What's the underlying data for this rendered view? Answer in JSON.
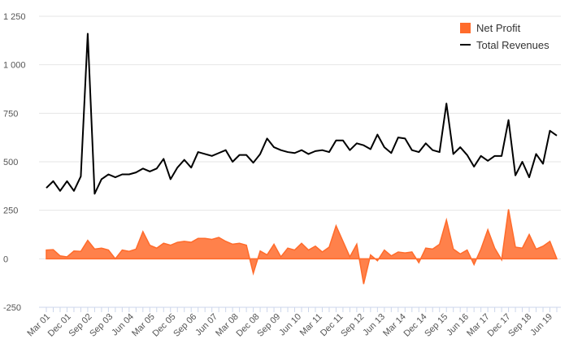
{
  "chart_data": {
    "type": "line",
    "title": "",
    "xlabel": "",
    "ylabel": "",
    "ylim": [
      -250,
      1250
    ],
    "y_ticks": [
      -250,
      0,
      250,
      500,
      750,
      1000,
      1250
    ],
    "y_tick_labels": [
      "-250",
      "0",
      "250",
      "500",
      "750",
      "1 000",
      "1 250"
    ],
    "grid": true,
    "legend_position": "top-right",
    "x_tick_labels": [
      "Mar 01",
      "Dec 01",
      "Sep 02",
      "Sep 03",
      "Jun 04",
      "Mar 05",
      "Dec 05",
      "Sep 06",
      "Jun 07",
      "Mar 08",
      "Dec 08",
      "Sep 09",
      "Jun 10",
      "Mar 11",
      "Dec 11",
      "Sep 12",
      "Jun 13",
      "Mar 14",
      "Dec 14",
      "Sep 15",
      "Jun 16",
      "Mar 17",
      "Dec 17",
      "Sep 18",
      "Jun 19"
    ],
    "series": [
      {
        "name": "Net Profit",
        "style": "area",
        "color": "#ff6b2b",
        "values": [
          45,
          47,
          15,
          10,
          40,
          38,
          95,
          50,
          55,
          45,
          0,
          45,
          38,
          50,
          140,
          70,
          55,
          80,
          70,
          85,
          90,
          85,
          105,
          105,
          100,
          110,
          90,
          75,
          80,
          70,
          -75,
          40,
          20,
          75,
          10,
          55,
          45,
          80,
          45,
          65,
          35,
          60,
          170,
          90,
          10,
          75,
          -130,
          20,
          -10,
          45,
          15,
          35,
          30,
          35,
          -20,
          55,
          50,
          75,
          200,
          50,
          25,
          45,
          -30,
          50,
          150,
          55,
          -5,
          255,
          60,
          55,
          125,
          50,
          65,
          90,
          0
        ]
      },
      {
        "name": "Total Revenues",
        "style": "line",
        "color": "#000000",
        "values": [
          365,
          400,
          350,
          400,
          350,
          425,
          1160,
          335,
          410,
          435,
          420,
          435,
          435,
          445,
          465,
          450,
          465,
          515,
          410,
          470,
          510,
          470,
          550,
          540,
          530,
          545,
          560,
          500,
          535,
          535,
          495,
          540,
          620,
          575,
          560,
          550,
          545,
          560,
          540,
          555,
          560,
          550,
          610,
          610,
          560,
          595,
          585,
          565,
          640,
          575,
          545,
          625,
          620,
          560,
          550,
          595,
          560,
          550,
          800,
          540,
          575,
          535,
          475,
          530,
          505,
          530,
          530,
          715,
          430,
          500,
          420,
          540,
          490,
          660,
          635
        ]
      }
    ]
  }
}
